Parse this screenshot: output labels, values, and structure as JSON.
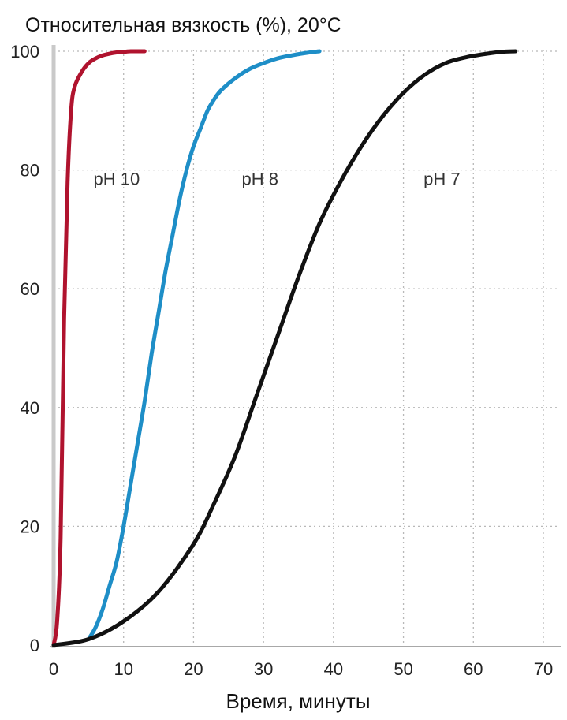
{
  "chart_data": {
    "type": "line",
    "title": "Относительная вязкость (%), 20°C",
    "xlabel": "Время, минуты",
    "ylabel": "",
    "xlim": [
      0,
      70
    ],
    "ylim": [
      0,
      100
    ],
    "x_ticks": [
      0,
      10,
      20,
      30,
      40,
      50,
      60,
      70
    ],
    "y_ticks": [
      0,
      20,
      40,
      60,
      80,
      100
    ],
    "grid": true,
    "grid_style": "dotted",
    "legend": "none",
    "series": [
      {
        "name": "pH 10",
        "color": "#b0132e",
        "x": [
          0,
          0.5,
          1,
          1.5,
          2,
          2.5,
          3,
          4,
          5,
          6,
          7,
          8,
          9,
          10,
          11,
          12,
          13
        ],
        "y": [
          0,
          4,
          18,
          55,
          78,
          90,
          94,
          96.5,
          98,
          98.8,
          99.3,
          99.6,
          99.8,
          99.9,
          100,
          100,
          100
        ]
      },
      {
        "name": "pH 8",
        "color": "#1e8ec7",
        "x": [
          5,
          6,
          7,
          8,
          9,
          10,
          11,
          12,
          13,
          14,
          15,
          16,
          17,
          18,
          19,
          20,
          21,
          22,
          23,
          24,
          26,
          28,
          30,
          32,
          34,
          36,
          38
        ],
        "y": [
          1,
          3,
          6,
          10,
          14,
          20,
          27,
          34,
          41,
          49,
          56,
          63,
          69,
          75,
          80,
          84,
          87,
          90,
          92,
          93.5,
          95.5,
          97,
          98,
          98.8,
          99.3,
          99.7,
          100
        ]
      },
      {
        "name": "pH 7",
        "color": "#111111",
        "x": [
          0,
          5,
          10,
          15,
          20,
          23,
          26,
          29,
          32,
          35,
          38,
          41,
          44,
          47,
          50,
          53,
          56,
          59,
          62,
          64,
          66
        ],
        "y": [
          0,
          1,
          4,
          9,
          17,
          24,
          32,
          42,
          52,
          62,
          71,
          78,
          84,
          89,
          93,
          96,
          98,
          99,
          99.6,
          99.9,
          100
        ]
      }
    ],
    "annotations": [
      {
        "text": "pH 10",
        "x": 9,
        "y": 77.5
      },
      {
        "text": "pH 8",
        "x": 29.5,
        "y": 77.5
      },
      {
        "text": "pH 7",
        "x": 55.5,
        "y": 77.5
      }
    ]
  }
}
